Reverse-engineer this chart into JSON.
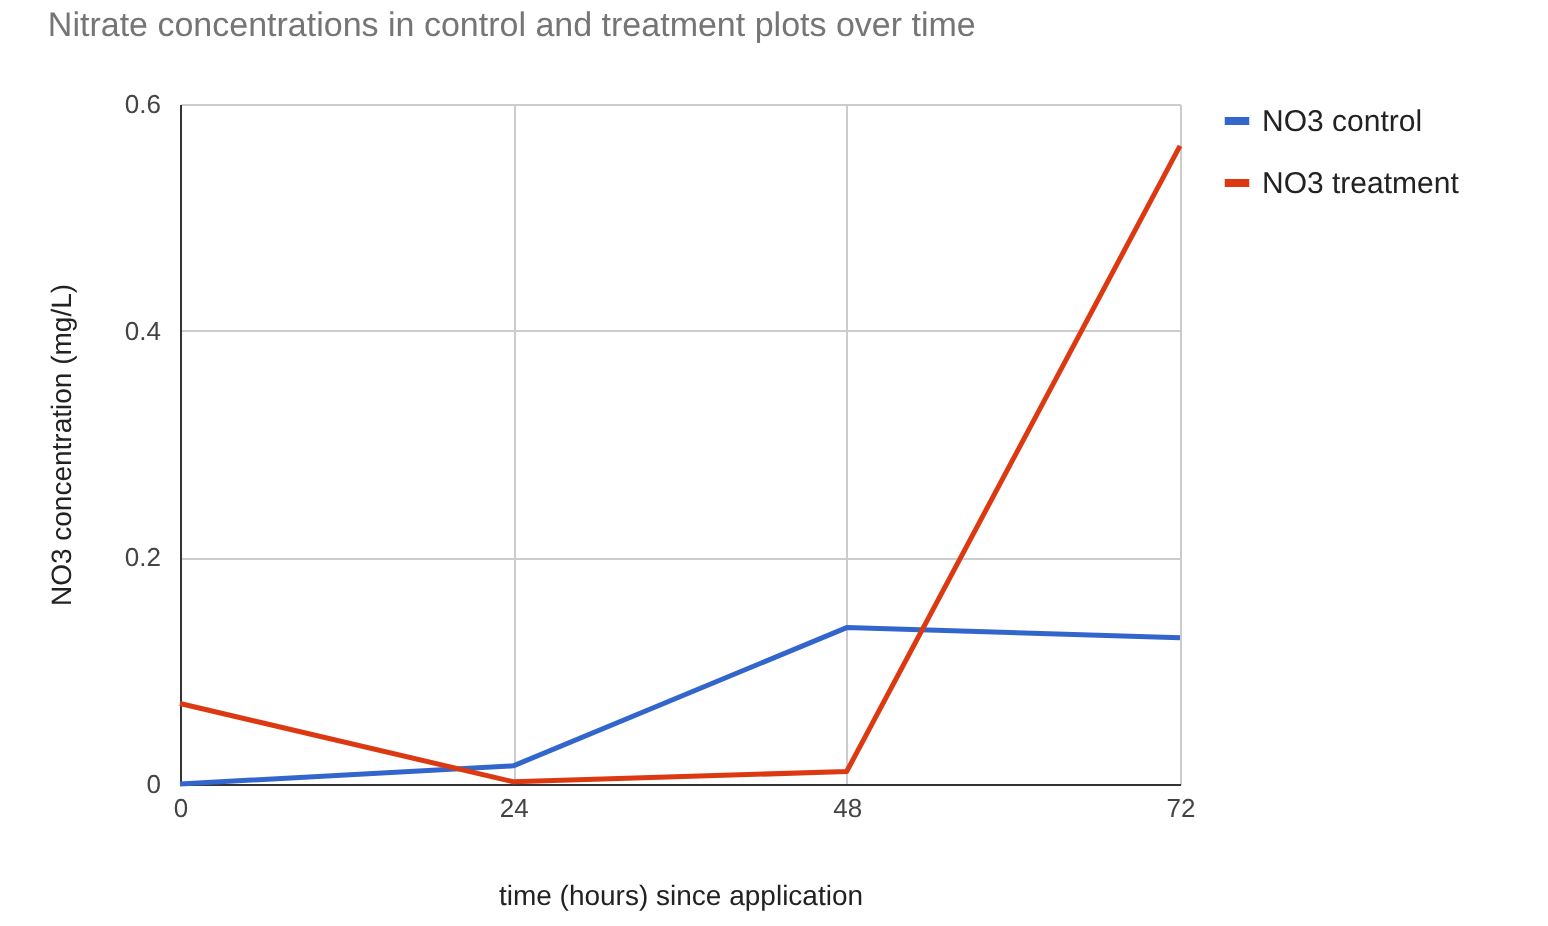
{
  "chart_data": {
    "type": "line",
    "title": "Nitrate concentrations in control and treatment plots over time",
    "xlabel": "time (hours) since application",
    "ylabel": "NO3 concentration (mg/L)",
    "x": [
      0,
      24,
      48,
      72
    ],
    "series": [
      {
        "name": "NO3 control",
        "color": "#3366cc",
        "values": [
          0,
          0.016,
          0.138,
          0.129
        ]
      },
      {
        "name": "NO3 treatment",
        "color": "#dc3912",
        "values": [
          0.071,
          0.002,
          0.011,
          0.563
        ]
      }
    ],
    "xlim": [
      0,
      72
    ],
    "xticks": [
      0,
      24,
      48,
      72
    ],
    "ylim": [
      0,
      0.6
    ],
    "yticks": [
      0,
      0.2,
      0.4,
      0.6
    ],
    "grid": true,
    "legend": "top right",
    "marker": "none",
    "line_style": "solid"
  }
}
